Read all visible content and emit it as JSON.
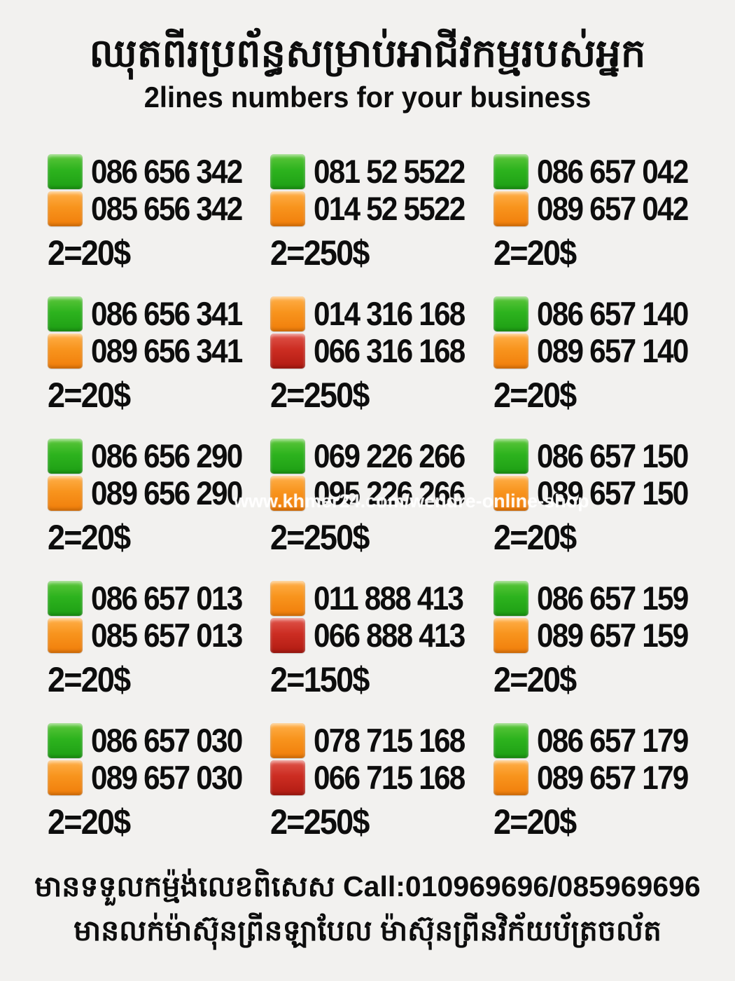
{
  "page": {
    "bg_color": "#f2f1ef",
    "title_khmer": "ឈុតពីរប្រព័ន្ធសម្រាប់អាជីវកម្មរបស់អ្នក",
    "title_english": "2lines numbers for your business",
    "watermark": "www.khmer24.com/wendre-online-shop"
  },
  "colors": {
    "green": "#2db31e",
    "orange": "#f8941d",
    "red": "#cc2d22",
    "text": "#0d0d0d",
    "background": "#f2f1ef"
  },
  "legend": {
    "square_icon_meaning": "sim-line-color-indicator"
  },
  "grid": {
    "cells": [
      {
        "lines": [
          {
            "color": "green",
            "number": "086 656 342"
          },
          {
            "color": "orange",
            "number": "085 656 342"
          }
        ],
        "price": "2=20$"
      },
      {
        "lines": [
          {
            "color": "green",
            "number": "081 52 5522"
          },
          {
            "color": "orange",
            "number": "014 52 5522"
          }
        ],
        "price": "2=250$"
      },
      {
        "lines": [
          {
            "color": "green",
            "number": "086 657 042"
          },
          {
            "color": "orange",
            "number": "089 657 042"
          }
        ],
        "price": "2=20$"
      },
      {
        "lines": [
          {
            "color": "green",
            "number": "086 656 341"
          },
          {
            "color": "orange",
            "number": "089 656 341"
          }
        ],
        "price": "2=20$"
      },
      {
        "lines": [
          {
            "color": "orange",
            "number": "014 316 168"
          },
          {
            "color": "red",
            "number": "066 316 168"
          }
        ],
        "price": "2=250$"
      },
      {
        "lines": [
          {
            "color": "green",
            "number": "086 657 140"
          },
          {
            "color": "orange",
            "number": "089 657 140"
          }
        ],
        "price": "2=20$"
      },
      {
        "lines": [
          {
            "color": "green",
            "number": "086 656 290"
          },
          {
            "color": "orange",
            "number": "089 656 290"
          }
        ],
        "price": "2=20$"
      },
      {
        "lines": [
          {
            "color": "green",
            "number": "069 226 266"
          },
          {
            "color": "orange",
            "number": "095 226 266"
          }
        ],
        "price": "2=250$"
      },
      {
        "lines": [
          {
            "color": "green",
            "number": "086 657 150"
          },
          {
            "color": "orange",
            "number": "089 657 150"
          }
        ],
        "price": "2=20$"
      },
      {
        "lines": [
          {
            "color": "green",
            "number": "086 657 013"
          },
          {
            "color": "orange",
            "number": "085 657 013"
          }
        ],
        "price": "2=20$"
      },
      {
        "lines": [
          {
            "color": "orange",
            "number": "011 888 413"
          },
          {
            "color": "red",
            "number": "066 888 413"
          }
        ],
        "price": "2=150$"
      },
      {
        "lines": [
          {
            "color": "green",
            "number": "086 657 159"
          },
          {
            "color": "orange",
            "number": "089 657 159"
          }
        ],
        "price": "2=20$"
      },
      {
        "lines": [
          {
            "color": "green",
            "number": "086 657 030"
          },
          {
            "color": "orange",
            "number": "089 657 030"
          }
        ],
        "price": "2=20$"
      },
      {
        "lines": [
          {
            "color": "orange",
            "number": "078 715 168"
          },
          {
            "color": "red",
            "number": "066 715 168"
          }
        ],
        "price": "2=250$"
      },
      {
        "lines": [
          {
            "color": "green",
            "number": "086 657 179"
          },
          {
            "color": "orange",
            "number": "089 657 179"
          }
        ],
        "price": "2=20$"
      }
    ]
  },
  "footer": {
    "line1": "មានទទួលកម្ម៉ង់លេខពិសេស Call:010969696/085969696",
    "line2": "មានលក់ម៉ាស៊ុនព្រីនឡាបែល ម៉ាស៊ុនព្រីនវិក័យប័ត្រចល័ត"
  }
}
